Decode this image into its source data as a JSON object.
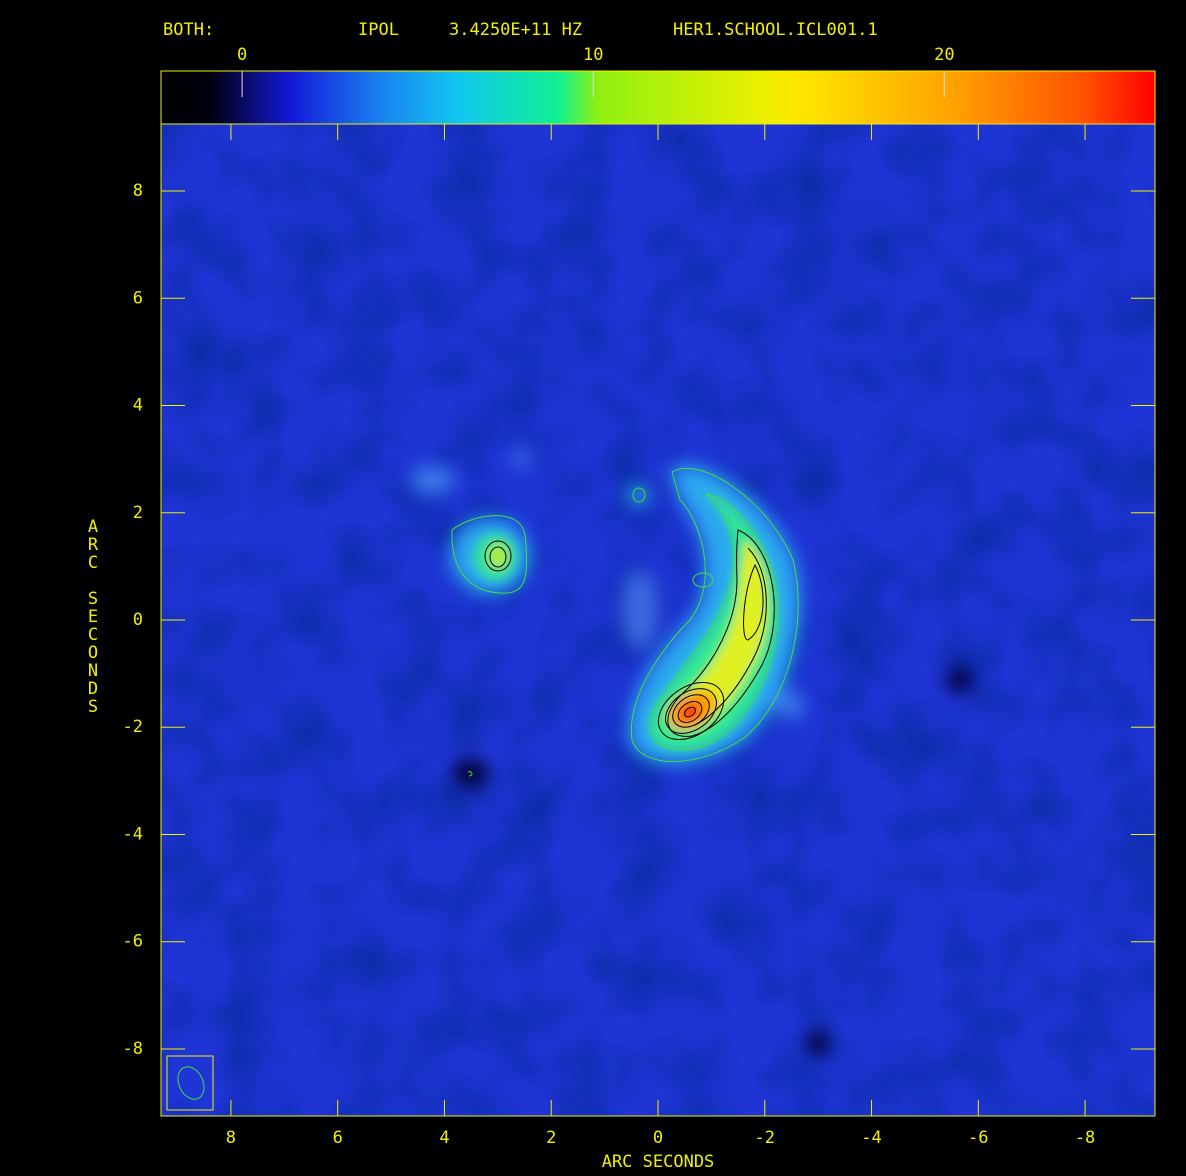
{
  "chart_data": {
    "type": "image",
    "title_parts": [
      "BOTH:",
      "IPOL",
      "3.4250E+11 HZ",
      "HER1.SCHOOL.ICL001.1"
    ],
    "xlabel": "ARC SECONDS",
    "ylabel": "ARC SECONDS",
    "xlim": [
      9.31,
      -9.31
    ],
    "xticks": [
      8,
      6,
      4,
      2,
      0,
      -2,
      -4,
      -6,
      -8
    ],
    "ylim": [
      -9.25,
      9.25
    ],
    "yticks": [
      -8,
      -6,
      -4,
      -2,
      0,
      2,
      4,
      6,
      8
    ],
    "colorbar": {
      "lim": [
        -2.31,
        26.0
      ],
      "ticks": [
        0,
        10,
        20
      ]
    },
    "grid": false,
    "axis_color": "#f0f000"
  }
}
